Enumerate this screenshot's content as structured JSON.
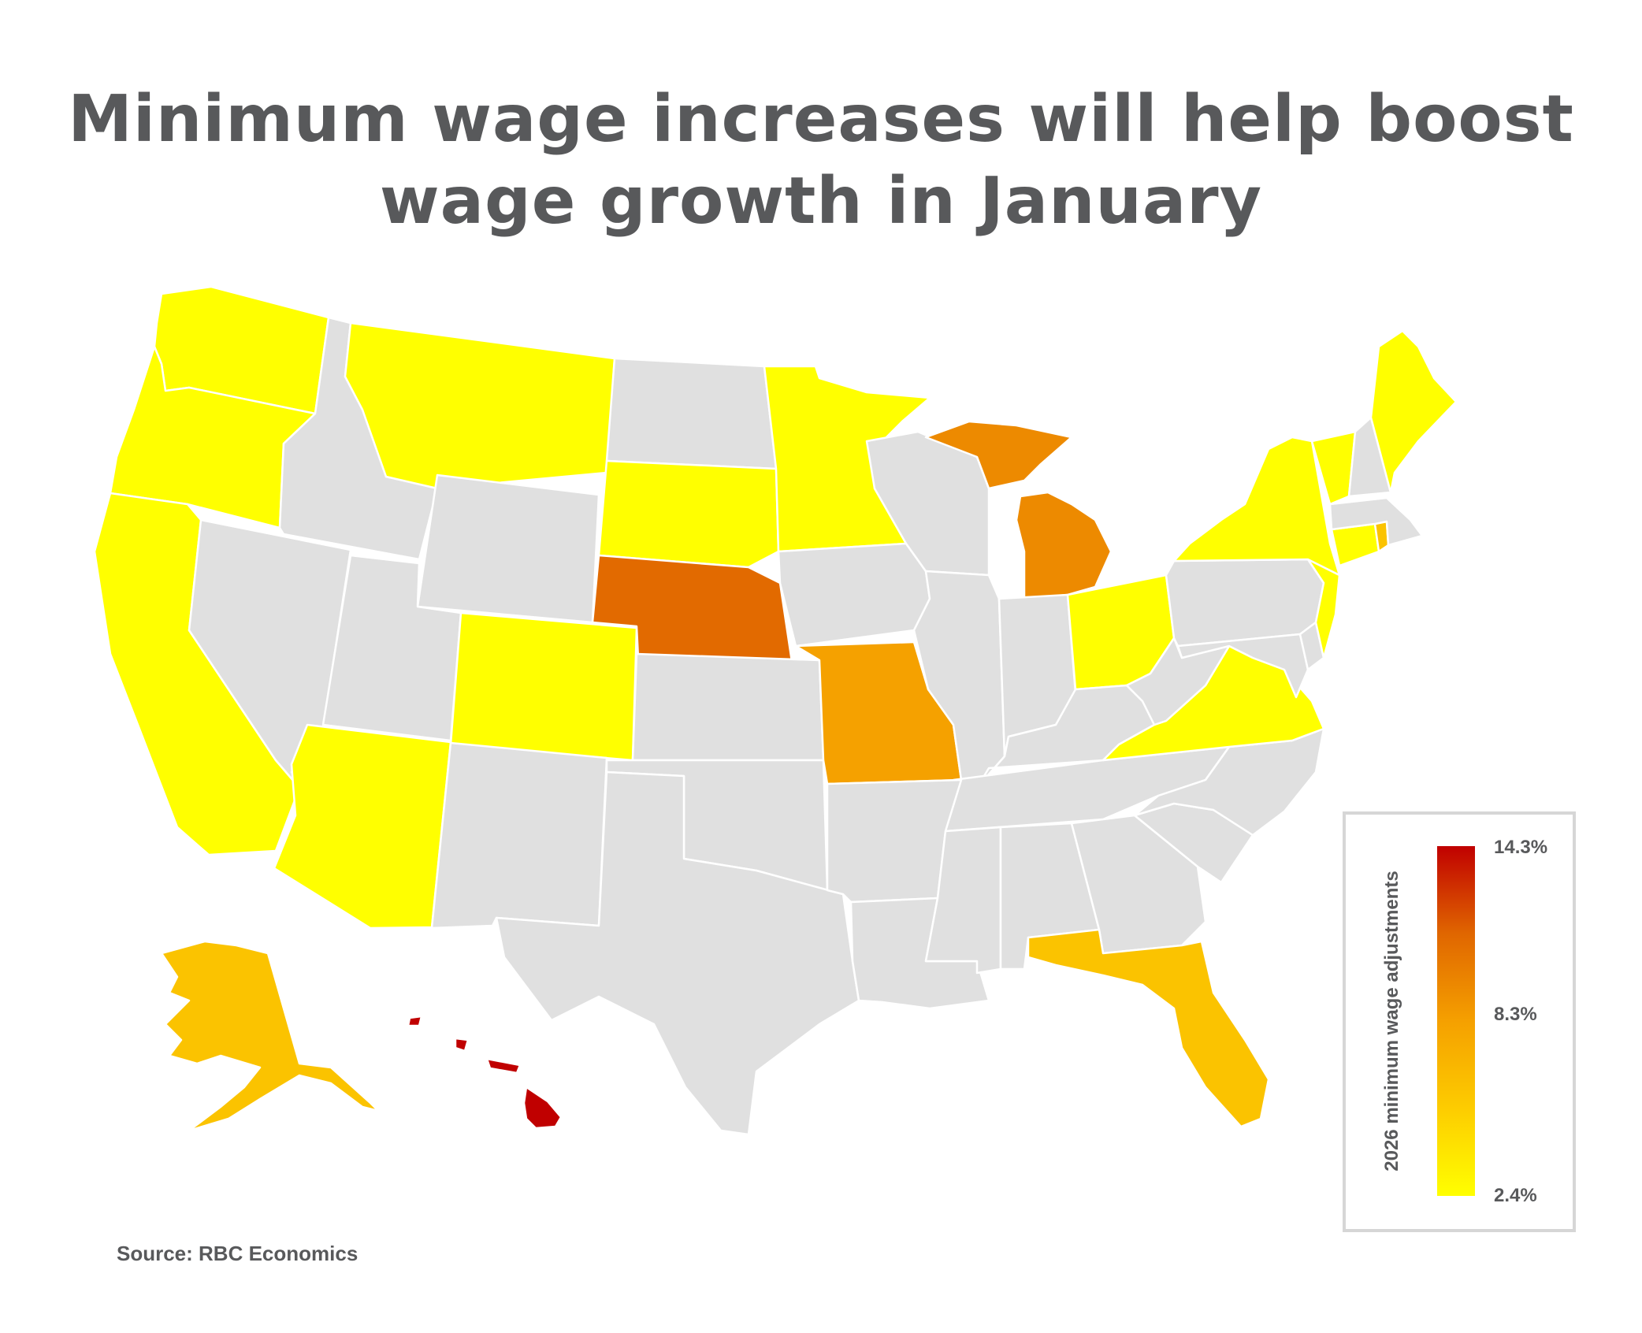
{
  "title": {
    "line1": "Minimum wage increases will help boost",
    "line2": "wage growth in January"
  },
  "map": {
    "type": "choropleth",
    "no_change_color": "#e0e0e0",
    "border_color": "#ffffff",
    "states": [
      {
        "name": "Washington",
        "value": 2.4
      },
      {
        "name": "Oregon",
        "value": 2.4
      },
      {
        "name": "California",
        "value": 2.4
      },
      {
        "name": "Montana",
        "value": 2.4
      },
      {
        "name": "Colorado",
        "value": 2.4
      },
      {
        "name": "Arizona",
        "value": 2.4
      },
      {
        "name": "South Dakota",
        "value": 2.4
      },
      {
        "name": "Minnesota",
        "value": 2.4
      },
      {
        "name": "Ohio",
        "value": 2.4
      },
      {
        "name": "Virginia",
        "value": 2.4
      },
      {
        "name": "New York",
        "value": 2.4
      },
      {
        "name": "Vermont",
        "value": 2.4
      },
      {
        "name": "Maine",
        "value": 2.4
      },
      {
        "name": "New Jersey",
        "value": 2.4
      },
      {
        "name": "Connecticut",
        "value": 2.4
      },
      {
        "name": "Rhode Island",
        "value": 6.0
      },
      {
        "name": "Alaska",
        "value": 6.0
      },
      {
        "name": "Florida",
        "value": 6.0
      },
      {
        "name": "Missouri",
        "value": 8.3
      },
      {
        "name": "Michigan",
        "value": 9.5
      },
      {
        "name": "Nebraska",
        "value": 11.1
      },
      {
        "name": "Hawaii",
        "value": 14.3
      },
      {
        "name": "Idaho",
        "value": null
      },
      {
        "name": "Nevada",
        "value": null
      },
      {
        "name": "Utah",
        "value": null
      },
      {
        "name": "Wyoming",
        "value": null
      },
      {
        "name": "New Mexico",
        "value": null
      },
      {
        "name": "North Dakota",
        "value": null
      },
      {
        "name": "Kansas",
        "value": null
      },
      {
        "name": "Oklahoma",
        "value": null
      },
      {
        "name": "Texas",
        "value": null
      },
      {
        "name": "Iowa",
        "value": null
      },
      {
        "name": "Arkansas",
        "value": null
      },
      {
        "name": "Louisiana",
        "value": null
      },
      {
        "name": "Wisconsin",
        "value": null
      },
      {
        "name": "Illinois",
        "value": null
      },
      {
        "name": "Mississippi",
        "value": null
      },
      {
        "name": "Indiana",
        "value": null
      },
      {
        "name": "Kentucky",
        "value": null
      },
      {
        "name": "Tennessee",
        "value": null
      },
      {
        "name": "Alabama",
        "value": null
      },
      {
        "name": "Georgia",
        "value": null
      },
      {
        "name": "South Carolina",
        "value": null
      },
      {
        "name": "North Carolina",
        "value": null
      },
      {
        "name": "West Virginia",
        "value": null
      },
      {
        "name": "Pennsylvania",
        "value": null
      },
      {
        "name": "Maryland",
        "value": null
      },
      {
        "name": "Delaware",
        "value": null
      },
      {
        "name": "New Hampshire",
        "value": null
      },
      {
        "name": "Massachusetts",
        "value": null
      }
    ]
  },
  "legend": {
    "title": "2026 minimum wage adjustments",
    "max_label": "14.3%",
    "mid_label": "8.3%",
    "min_label": "2.4%",
    "min": 2.4,
    "mid": 8.3,
    "max": 14.3,
    "colors": [
      "#ffff00",
      "#fdcc00",
      "#f5a000",
      "#e06600",
      "#c00000"
    ]
  },
  "source": "Source: RBC Economics"
}
